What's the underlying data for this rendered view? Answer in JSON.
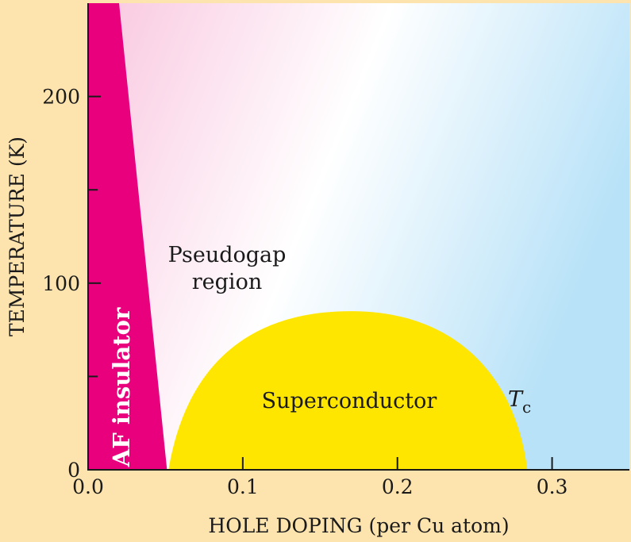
{
  "chart_data": {
    "type": "area",
    "xlabel": "HOLE DOPING (per Cu atom)",
    "ylabel": "TEMPERATURE (K)",
    "xlim": [
      0.0,
      0.35
    ],
    "ylim": [
      0,
      250
    ],
    "x_ticks": [
      "0.0",
      "0.1",
      "0.2",
      "0.3"
    ],
    "x_tick_values": [
      0.0,
      0.1,
      0.2,
      0.3
    ],
    "y_ticks": [
      "0",
      "100",
      "200"
    ],
    "y_tick_values": [
      0,
      100,
      200
    ],
    "y_minor_ticks": [
      50,
      150
    ],
    "regions": [
      {
        "name": "AF insulator",
        "color": "#e8007d",
        "boundary": [
          [
            0.0,
            0
          ],
          [
            0.0,
            250
          ],
          [
            0.02,
            250
          ],
          [
            0.051,
            0
          ]
        ]
      },
      {
        "name": "Pseudogap region",
        "color": "#f7c8e0"
      },
      {
        "name": "Superconductor",
        "color": "#ffe600",
        "dome_x_start": 0.052,
        "dome_x_end": 0.284,
        "dome_peak_x": 0.17,
        "dome_peak_t": 85
      }
    ],
    "annotations": {
      "af": "AF insulator",
      "pseudogap_line1": "Pseudogap",
      "pseudogap_line2": "region",
      "superconductor": "Superconductor",
      "tc_main": "T",
      "tc_sub": "c"
    },
    "colors": {
      "background": "#fde3ae",
      "right_region": "#b8e2f8"
    }
  }
}
